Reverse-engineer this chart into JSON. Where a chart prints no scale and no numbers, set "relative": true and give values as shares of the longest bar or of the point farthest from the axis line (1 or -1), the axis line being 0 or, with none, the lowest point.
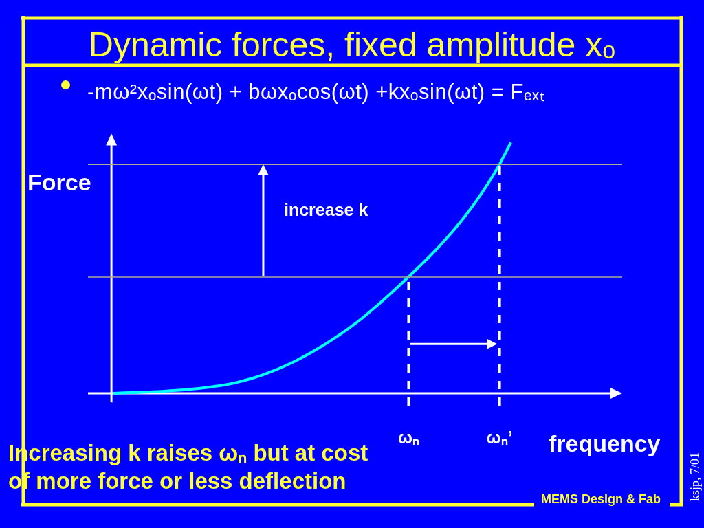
{
  "chart_data": {
    "type": "line",
    "title": "Dynamic forces, fixed amplitude xₒ",
    "subtitle": "-mω²xₒsin(ωt) + bωxₒcos(ωt) +kxₒsin(ωt) = Fₑₓₜ",
    "xlabel": "frequency",
    "ylabel": "Force",
    "relative": true,
    "categories": [
      null,
      null,
      null,
      null,
      null,
      null,
      null,
      null,
      null,
      null,
      null,
      null,
      null,
      null,
      null,
      null,
      null,
      null,
      null,
      null,
      null,
      null,
      null,
      null,
      null,
      null,
      "ωₙ",
      null,
      null,
      null,
      null,
      null,
      null,
      null,
      "ωₙ’",
      null
    ],
    "values": [
      0,
      0.002,
      0.003,
      0.005,
      0.007,
      0.01,
      0.013,
      0.017,
      0.022,
      0.028,
      0.035,
      0.045,
      0.057,
      0.071,
      0.088,
      0.107,
      0.128,
      0.152,
      0.178,
      0.206,
      0.236,
      0.268,
      0.303,
      0.341,
      0.381,
      0.422,
      0.465,
      0.508,
      0.553,
      0.601,
      0.652,
      0.708,
      0.769,
      0.837,
      0.912,
      1
    ],
    "color": "#00ffff",
    "ref_lines": [
      {
        "axis": "y",
        "value": 0.463,
        "color": "#aaaa99"
      },
      {
        "axis": "y",
        "value": 0.912,
        "color": "#aaaa99"
      },
      {
        "axis": "x",
        "value": "ωₙ",
        "color": "#ffffff",
        "line_style": "dashed"
      },
      {
        "axis": "x",
        "value": "ωₙ’",
        "color": "#ffffff",
        "line_style": "dashed"
      }
    ],
    "annotations": [
      "increase k",
      "Increasing k raises ωₙ but at cost of more force or less deflection",
      "MEMS Design & Fab",
      "ksjp, 7/01"
    ]
  }
}
